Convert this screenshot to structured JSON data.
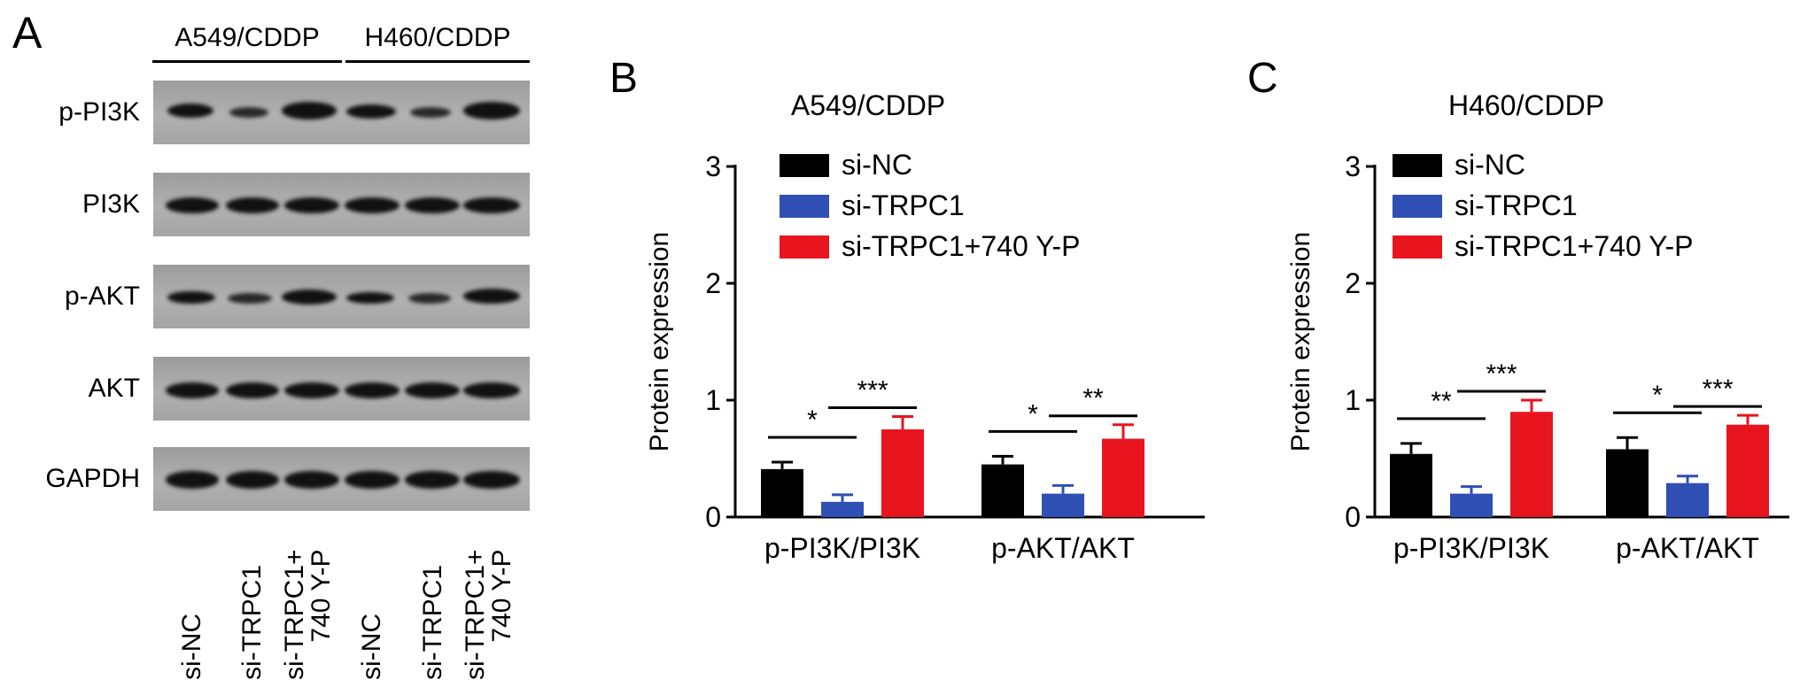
{
  "panel_a": {
    "letter": "A",
    "groups": [
      "A549/CDDP",
      "H460/CDDP"
    ],
    "blots": [
      "p-PI3K",
      "PI3K",
      "p-AKT",
      "AKT",
      "GAPDH"
    ],
    "lanes": [
      [
        "si-NC"
      ],
      [
        "si-TRPC1"
      ],
      [
        "si-TRPC1+",
        "740 Y-P"
      ],
      [
        "si-NC"
      ],
      [
        "si-TRPC1"
      ],
      [
        "si-TRPC1+",
        "740 Y-P"
      ]
    ]
  },
  "colors": {
    "si_nc": "#000000",
    "si_trpc1": "#2f4fb4",
    "si_trpc1_740": "#e8141e"
  },
  "chart_data": [
    {
      "letter": "B",
      "type": "bar",
      "title": "A549/CDDP",
      "xlabel": "",
      "ylabel": "Protein expression",
      "ylim": [
        0,
        3
      ],
      "yticks": [
        0,
        1,
        2,
        3
      ],
      "categories": [
        "p-PI3K/PI3K",
        "p-AKT/AKT"
      ],
      "legend_position": "top-left",
      "series": [
        {
          "name": "si-NC",
          "color": "#000000",
          "values": [
            0.41,
            0.45
          ],
          "errors": [
            0.06,
            0.07
          ]
        },
        {
          "name": "si-TRPC1",
          "color": "#2f4fb4",
          "values": [
            0.13,
            0.2
          ],
          "errors": [
            0.06,
            0.07
          ]
        },
        {
          "name": "si-TRPC1+740 Y-P",
          "color": "#e8141e",
          "values": [
            0.75,
            0.67
          ],
          "errors": [
            0.11,
            0.12
          ]
        }
      ],
      "significance": [
        {
          "category": 0,
          "from": 0,
          "to": 1,
          "label": "*"
        },
        {
          "category": 0,
          "from": 1,
          "to": 2,
          "label": "***"
        },
        {
          "category": 1,
          "from": 0,
          "to": 1,
          "label": "*"
        },
        {
          "category": 1,
          "from": 1,
          "to": 2,
          "label": "**"
        }
      ]
    },
    {
      "letter": "C",
      "type": "bar",
      "title": "H460/CDDP",
      "xlabel": "",
      "ylabel": "Protein expression",
      "ylim": [
        0,
        3
      ],
      "yticks": [
        0,
        1,
        2,
        3
      ],
      "categories": [
        "p-PI3K/PI3K",
        "p-AKT/AKT"
      ],
      "legend_position": "top-left",
      "series": [
        {
          "name": "si-NC",
          "color": "#000000",
          "values": [
            0.54,
            0.58
          ],
          "errors": [
            0.09,
            0.1
          ]
        },
        {
          "name": "si-TRPC1",
          "color": "#2f4fb4",
          "values": [
            0.2,
            0.29
          ],
          "errors": [
            0.06,
            0.06
          ]
        },
        {
          "name": "si-TRPC1+740 Y-P",
          "color": "#e8141e",
          "values": [
            0.9,
            0.79
          ],
          "errors": [
            0.1,
            0.08
          ]
        }
      ],
      "significance": [
        {
          "category": 0,
          "from": 0,
          "to": 1,
          "label": "**"
        },
        {
          "category": 0,
          "from": 1,
          "to": 2,
          "label": "***"
        },
        {
          "category": 1,
          "from": 0,
          "to": 1,
          "label": "*"
        },
        {
          "category": 1,
          "from": 1,
          "to": 2,
          "label": "***"
        }
      ]
    }
  ]
}
